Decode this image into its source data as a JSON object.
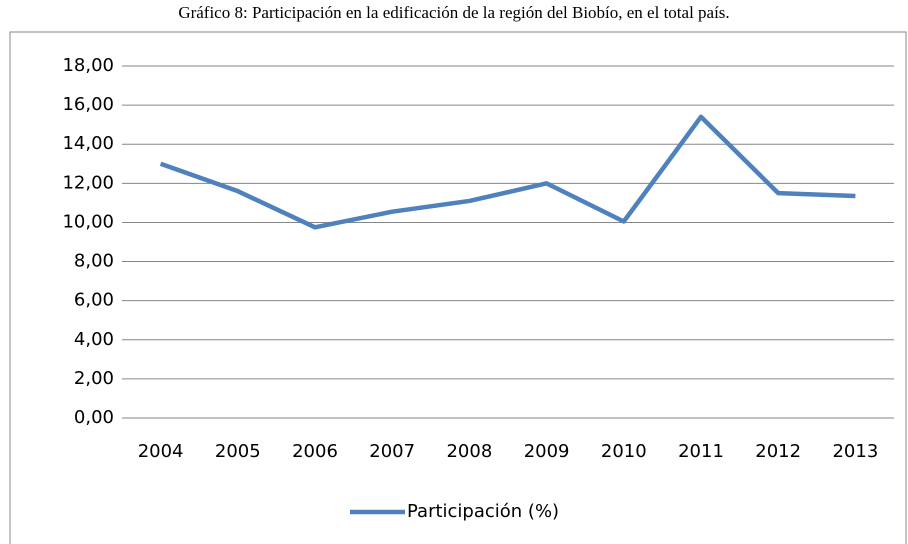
{
  "chart_data": {
    "type": "line",
    "title": "Gráfico 8: Participación en la edificación de la región del Biobío, en el total país.",
    "categories": [
      "2004",
      "2005",
      "2006",
      "2007",
      "2008",
      "2009",
      "2010",
      "2011",
      "2012",
      "2013"
    ],
    "series": [
      {
        "name": "Participación (%)",
        "color": "#4f81bd",
        "values": [
          13.0,
          11.6,
          9.75,
          10.55,
          11.1,
          12.0,
          10.05,
          15.4,
          11.5,
          11.35
        ]
      }
    ],
    "ylim": [
      0,
      18
    ],
    "yticks": [
      {
        "value": 0,
        "label": "0,00"
      },
      {
        "value": 2,
        "label": "2,00"
      },
      {
        "value": 4,
        "label": "4,00"
      },
      {
        "value": 6,
        "label": "6,00"
      },
      {
        "value": 8,
        "label": "8,00"
      },
      {
        "value": 10,
        "label": "10,00"
      },
      {
        "value": 12,
        "label": "12,00"
      },
      {
        "value": 14,
        "label": "14,00"
      },
      {
        "value": 16,
        "label": "16,00"
      },
      {
        "value": 18,
        "label": "18,00"
      }
    ],
    "grid": true,
    "legend": "bottom"
  }
}
